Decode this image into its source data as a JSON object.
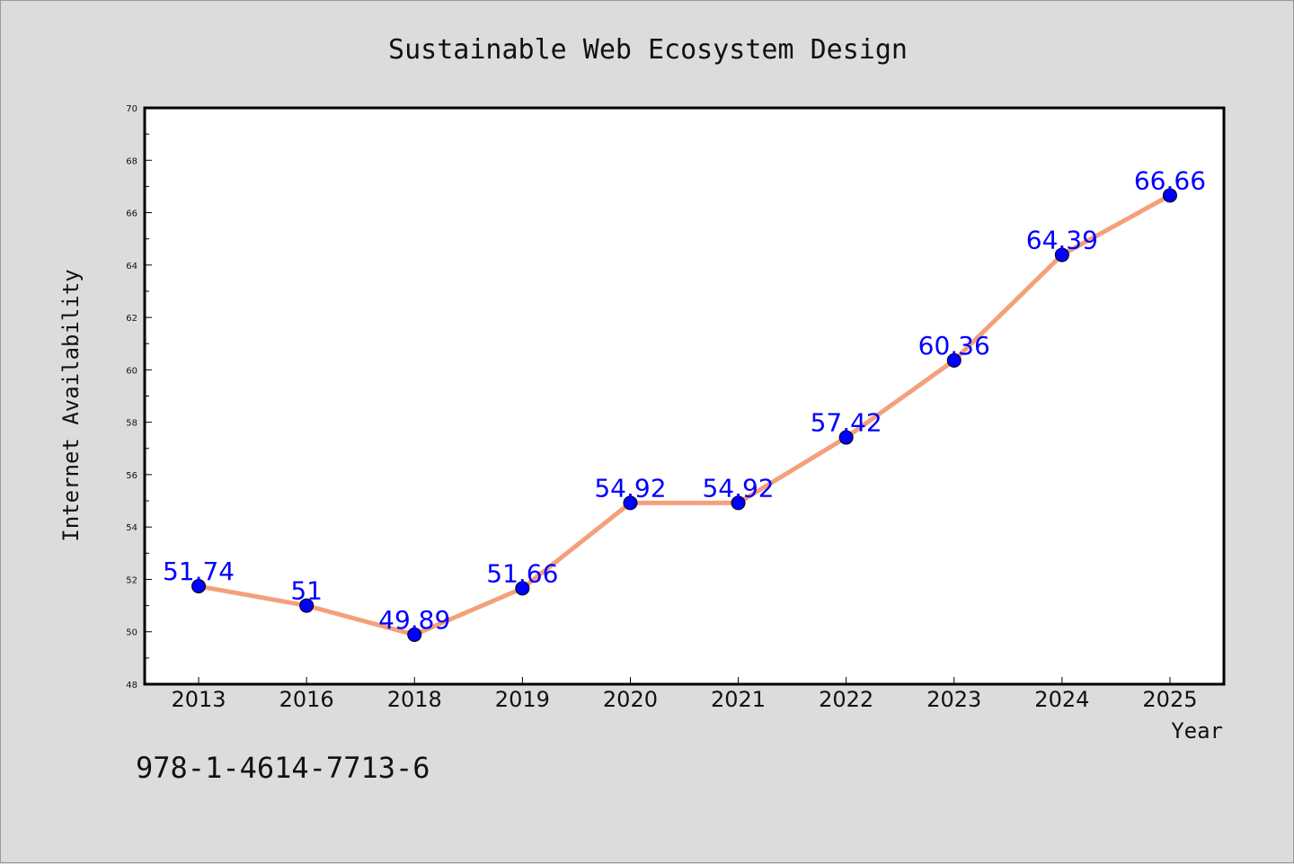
{
  "chart_data": {
    "type": "line",
    "title": "Sustainable Web Ecosystem Design",
    "xlabel": "Year",
    "ylabel": "Internet Availability",
    "categories": [
      "2013",
      "2016",
      "2018",
      "2019",
      "2020",
      "2021",
      "2022",
      "2023",
      "2024",
      "2025"
    ],
    "series": [
      {
        "values": [
          51.74,
          51,
          49.89,
          51.66,
          54.92,
          54.92,
          57.42,
          60.36,
          64.39,
          66.66
        ],
        "line_color": "#f4a07a",
        "marker_color": "#0000ff"
      }
    ],
    "ylim": [
      48,
      70
    ],
    "yticks": [
      48,
      50,
      52,
      54,
      56,
      58,
      60,
      62,
      64,
      66,
      68,
      70
    ],
    "grid": false,
    "legend": "none"
  },
  "footer_text": "978-1-4614-7713-6",
  "colors": {
    "background": "#dcdcdc",
    "plot_background": "#ffffff",
    "data_label": "#0000ff"
  }
}
